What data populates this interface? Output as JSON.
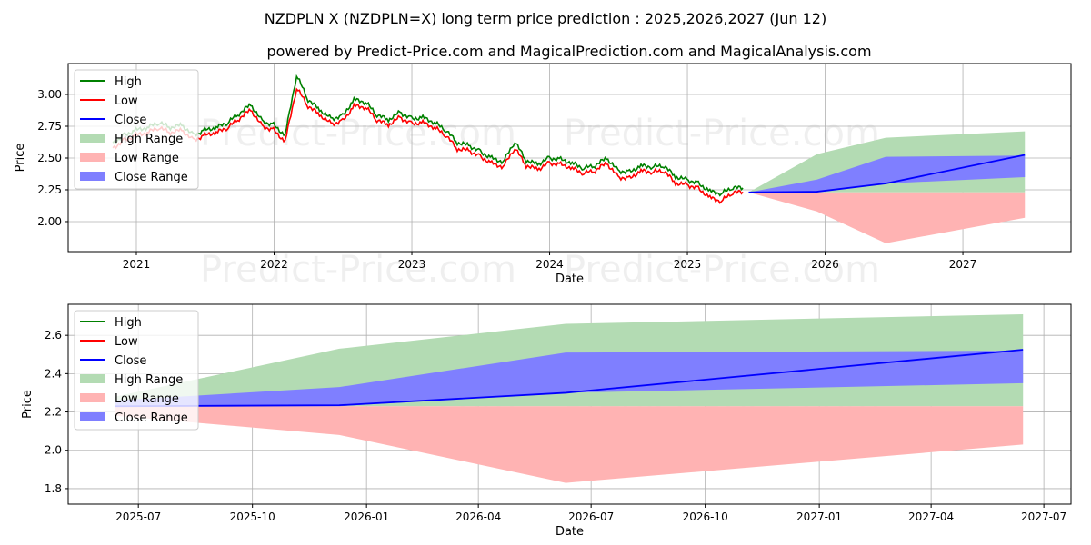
{
  "title": "NZDPLN X (NZDPLN=X) long term price prediction : 2025,2026,2027 (Jun 12)",
  "subtitle": "powered by Predict-Price.com and MagicalPrediction.com and MagicalAnalysis.com",
  "watermark": "Predict-Price.com",
  "colors": {
    "high": "#008000",
    "low": "#ff0000",
    "close": "#0000ff",
    "high_range": "#b3dbb3",
    "low_range": "#ffb3b3",
    "close_range": "#7f7fff"
  },
  "legend": [
    "High",
    "Low",
    "Close",
    "High Range",
    "Low Range",
    "Close Range"
  ],
  "chart_data": [
    {
      "type": "line",
      "panel": "top",
      "xlabel": "Date",
      "ylabel": "Price",
      "xlim": [
        2020.505,
        2027.785
      ],
      "ylim": [
        1.764,
        3.243
      ],
      "xticks": [
        {
          "v": 2021,
          "label": "2021"
        },
        {
          "v": 2022,
          "label": "2022"
        },
        {
          "v": 2023,
          "label": "2023"
        },
        {
          "v": 2024,
          "label": "2024"
        },
        {
          "v": 2025,
          "label": "2025"
        },
        {
          "v": 2026,
          "label": "2026"
        },
        {
          "v": 2027,
          "label": "2027"
        }
      ],
      "yticks": [
        {
          "v": 2.0,
          "label": "2.00"
        },
        {
          "v": 2.25,
          "label": "2.25"
        },
        {
          "v": 2.5,
          "label": "2.50"
        },
        {
          "v": 2.75,
          "label": "2.75"
        },
        {
          "v": 3.0,
          "label": "3.00"
        }
      ],
      "grid": true,
      "legend_position": "top-left",
      "history": {
        "x_start": 2020.83,
        "x_step_months": 1,
        "high": [
          2.62,
          2.68,
          2.72,
          2.74,
          2.78,
          2.74,
          2.76,
          2.68,
          2.72,
          2.74,
          2.78,
          2.85,
          2.92,
          2.79,
          2.76,
          2.68,
          3.15,
          2.96,
          2.88,
          2.81,
          2.83,
          2.96,
          2.94,
          2.84,
          2.8,
          2.86,
          2.81,
          2.82,
          2.78,
          2.72,
          2.62,
          2.6,
          2.55,
          2.5,
          2.47,
          2.63,
          2.48,
          2.45,
          2.5,
          2.49,
          2.46,
          2.42,
          2.44,
          2.5,
          2.4,
          2.39,
          2.44,
          2.43,
          2.44,
          2.35,
          2.33,
          2.3,
          2.24,
          2.22,
          2.27,
          2.26
        ],
        "low": [
          2.58,
          2.64,
          2.68,
          2.7,
          2.74,
          2.7,
          2.72,
          2.64,
          2.68,
          2.7,
          2.74,
          2.81,
          2.88,
          2.75,
          2.72,
          2.63,
          3.05,
          2.91,
          2.84,
          2.77,
          2.79,
          2.91,
          2.9,
          2.8,
          2.76,
          2.82,
          2.77,
          2.78,
          2.74,
          2.68,
          2.57,
          2.56,
          2.51,
          2.46,
          2.43,
          2.58,
          2.44,
          2.41,
          2.46,
          2.45,
          2.42,
          2.38,
          2.4,
          2.46,
          2.35,
          2.34,
          2.4,
          2.39,
          2.4,
          2.3,
          2.29,
          2.26,
          2.19,
          2.16,
          2.23,
          2.23
        ]
      },
      "forecast": {
        "x": [
          2025.445,
          2025.94,
          2026.44,
          2027.45
        ],
        "close": [
          2.23,
          2.235,
          2.3,
          2.525
        ],
        "high_range": [
          [
            2.23,
            2.23
          ],
          [
            2.23,
            2.53
          ],
          [
            2.23,
            2.66
          ],
          [
            2.23,
            2.71
          ]
        ],
        "low_range": [
          [
            2.23,
            2.23
          ],
          [
            2.08,
            2.23
          ],
          [
            1.83,
            2.23
          ],
          [
            2.03,
            2.23
          ]
        ],
        "close_range": [
          [
            2.23,
            2.23
          ],
          [
            2.23,
            2.33
          ],
          [
            2.3,
            2.51
          ],
          [
            2.35,
            2.52
          ]
        ]
      }
    },
    {
      "type": "line",
      "panel": "bottom",
      "xlabel": "Date",
      "ylabel": "Price",
      "xlim": [
        2025.341,
        2027.556
      ],
      "ylim": [
        1.719,
        2.762
      ],
      "xticks": [
        {
          "v": 2025.496,
          "label": "2025-07"
        },
        {
          "v": 2025.748,
          "label": "2025-10"
        },
        {
          "v": 2026.0,
          "label": "2026-01"
        },
        {
          "v": 2026.247,
          "label": "2026-04"
        },
        {
          "v": 2026.496,
          "label": "2026-07"
        },
        {
          "v": 2026.748,
          "label": "2026-10"
        },
        {
          "v": 2027.0,
          "label": "2027-01"
        },
        {
          "v": 2027.247,
          "label": "2027-04"
        },
        {
          "v": 2027.496,
          "label": "2027-07"
        }
      ],
      "yticks": [
        {
          "v": 1.8,
          "label": "1.8"
        },
        {
          "v": 2.0,
          "label": "2.0"
        },
        {
          "v": 2.2,
          "label": "2.2"
        },
        {
          "v": 2.4,
          "label": "2.4"
        },
        {
          "v": 2.6,
          "label": "2.6"
        }
      ],
      "grid": true,
      "legend_position": "top-left",
      "forecast": {
        "x": [
          2025.445,
          2025.94,
          2026.44,
          2027.45
        ],
        "close": [
          2.23,
          2.235,
          2.3,
          2.525
        ],
        "high_range": [
          [
            2.23,
            2.28
          ],
          [
            2.23,
            2.53
          ],
          [
            2.23,
            2.66
          ],
          [
            2.23,
            2.71
          ]
        ],
        "low_range": [
          [
            2.18,
            2.23
          ],
          [
            2.08,
            2.23
          ],
          [
            1.83,
            2.23
          ],
          [
            2.03,
            2.23
          ]
        ],
        "close_range": [
          [
            2.23,
            2.26
          ],
          [
            2.23,
            2.33
          ],
          [
            2.3,
            2.51
          ],
          [
            2.35,
            2.52
          ]
        ]
      }
    }
  ]
}
